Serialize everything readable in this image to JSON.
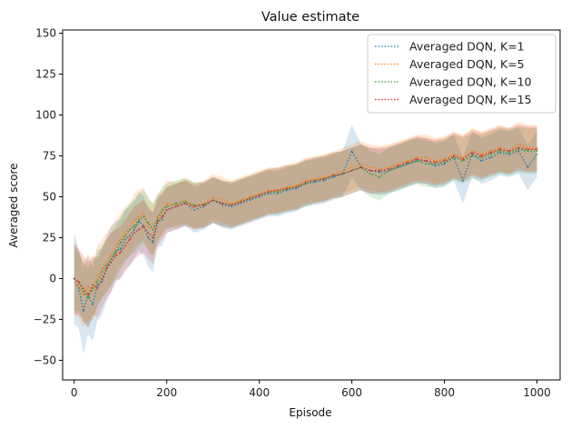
{
  "chart_data": {
    "type": "line",
    "title": "Value estimate",
    "xlabel": "Episode",
    "ylabel": "Averaged score",
    "xlim": [
      -25,
      1050
    ],
    "ylim": [
      -62,
      152
    ],
    "xticks": [
      0,
      200,
      400,
      600,
      800,
      1000
    ],
    "yticks": [
      -50,
      -25,
      0,
      25,
      50,
      75,
      100,
      125,
      150
    ],
    "legend_position": "top-right",
    "grid": false,
    "series": [
      {
        "name": "Averaged DQN, K=1",
        "color": "#1f77b4",
        "x": [
          0,
          10,
          20,
          30,
          40,
          50,
          60,
          70,
          80,
          90,
          100,
          110,
          120,
          130,
          140,
          150,
          160,
          170,
          180,
          190,
          200,
          220,
          240,
          260,
          280,
          300,
          320,
          340,
          360,
          380,
          400,
          420,
          440,
          460,
          480,
          500,
          520,
          540,
          560,
          580,
          600,
          620,
          640,
          660,
          680,
          700,
          720,
          740,
          760,
          780,
          800,
          820,
          840,
          860,
          880,
          900,
          920,
          940,
          960,
          980,
          1000
        ],
        "y": [
          0,
          -6,
          -20,
          -10,
          -16,
          -4,
          -2,
          6,
          12,
          17,
          18,
          24,
          26,
          30,
          35,
          32,
          25,
          22,
          35,
          36,
          42,
          44,
          46,
          42,
          44,
          48,
          45,
          44,
          46,
          48,
          50,
          52,
          52,
          54,
          55,
          58,
          59,
          60,
          62,
          64,
          78,
          68,
          66,
          65,
          66,
          68,
          70,
          72,
          72,
          69,
          70,
          74,
          60,
          76,
          72,
          74,
          77,
          76,
          78,
          68,
          76
        ],
        "band": [
          28,
          24,
          26,
          24,
          22,
          22,
          20,
          20,
          20,
          18,
          18,
          18,
          18,
          18,
          18,
          18,
          18,
          18,
          16,
          16,
          14,
          14,
          14,
          14,
          14,
          14,
          14,
          14,
          14,
          14,
          14,
          14,
          14,
          14,
          14,
          14,
          14,
          14,
          14,
          14,
          16,
          14,
          14,
          14,
          14,
          14,
          14,
          14,
          14,
          14,
          14,
          14,
          14,
          14,
          14,
          14,
          14,
          14,
          14,
          14,
          14
        ]
      },
      {
        "name": "Averaged DQN, K=5",
        "color": "#ff7f0e",
        "x": [
          0,
          10,
          20,
          30,
          40,
          50,
          60,
          70,
          80,
          90,
          100,
          110,
          120,
          130,
          140,
          150,
          160,
          170,
          180,
          190,
          200,
          220,
          240,
          260,
          280,
          300,
          320,
          340,
          360,
          380,
          400,
          420,
          440,
          460,
          480,
          500,
          520,
          540,
          560,
          580,
          600,
          620,
          640,
          660,
          680,
          700,
          720,
          740,
          760,
          780,
          800,
          820,
          840,
          860,
          880,
          900,
          920,
          940,
          960,
          980,
          1000
        ],
        "y": [
          0,
          -4,
          -10,
          -5,
          -8,
          2,
          6,
          10,
          14,
          20,
          24,
          28,
          30,
          36,
          38,
          40,
          32,
          30,
          38,
          40,
          46,
          45,
          48,
          44,
          46,
          50,
          48,
          46,
          48,
          50,
          52,
          54,
          54,
          56,
          57,
          60,
          61,
          62,
          64,
          66,
          68,
          70,
          68,
          67,
          68,
          70,
          72,
          74,
          74,
          72,
          73,
          76,
          74,
          78,
          76,
          78,
          80,
          78,
          82,
          80,
          80
        ],
        "band": [
          22,
          20,
          20,
          20,
          18,
          18,
          18,
          18,
          18,
          16,
          16,
          16,
          16,
          16,
          16,
          16,
          16,
          16,
          14,
          14,
          14,
          14,
          14,
          14,
          14,
          14,
          14,
          14,
          14,
          14,
          14,
          14,
          14,
          14,
          14,
          14,
          14,
          14,
          14,
          14,
          14,
          14,
          14,
          14,
          14,
          14,
          14,
          14,
          14,
          14,
          14,
          14,
          14,
          14,
          14,
          14,
          14,
          14,
          14,
          14,
          14
        ]
      },
      {
        "name": "Averaged DQN, K=10",
        "color": "#2ca02c",
        "x": [
          0,
          10,
          20,
          30,
          40,
          50,
          60,
          70,
          80,
          90,
          100,
          110,
          120,
          130,
          140,
          150,
          160,
          170,
          180,
          190,
          200,
          220,
          240,
          260,
          280,
          300,
          320,
          340,
          360,
          380,
          400,
          420,
          440,
          460,
          480,
          500,
          520,
          540,
          560,
          580,
          600,
          620,
          640,
          660,
          680,
          700,
          720,
          740,
          760,
          780,
          800,
          820,
          840,
          860,
          880,
          900,
          920,
          940,
          960,
          980,
          1000
        ],
        "y": [
          0,
          -2,
          -8,
          -12,
          -6,
          -2,
          4,
          8,
          12,
          16,
          22,
          26,
          30,
          32,
          36,
          38,
          34,
          30,
          36,
          42,
          44,
          46,
          47,
          45,
          45,
          48,
          46,
          45,
          47,
          49,
          51,
          53,
          53,
          55,
          56,
          58,
          60,
          61,
          63,
          64,
          66,
          68,
          64,
          62,
          66,
          68,
          70,
          72,
          70,
          70,
          71,
          74,
          72,
          75,
          74,
          76,
          78,
          77,
          79,
          78,
          78
        ],
        "band": [
          20,
          18,
          18,
          18,
          18,
          16,
          16,
          16,
          16,
          16,
          16,
          16,
          16,
          16,
          16,
          16,
          16,
          16,
          14,
          14,
          14,
          14,
          14,
          14,
          14,
          14,
          14,
          14,
          14,
          14,
          14,
          14,
          14,
          14,
          14,
          14,
          14,
          14,
          14,
          14,
          14,
          14,
          14,
          14,
          14,
          14,
          14,
          14,
          14,
          14,
          14,
          14,
          14,
          14,
          14,
          14,
          14,
          14,
          14,
          14,
          14
        ]
      },
      {
        "name": "Averaged DQN, K=15",
        "color": "#d62728",
        "x": [
          0,
          10,
          20,
          30,
          40,
          50,
          60,
          70,
          80,
          90,
          100,
          110,
          120,
          130,
          140,
          150,
          160,
          170,
          180,
          190,
          200,
          220,
          240,
          260,
          280,
          300,
          320,
          340,
          360,
          380,
          400,
          420,
          440,
          460,
          480,
          500,
          520,
          540,
          560,
          580,
          600,
          620,
          640,
          660,
          680,
          700,
          720,
          740,
          760,
          780,
          800,
          820,
          840,
          860,
          880,
          900,
          920,
          940,
          960,
          980,
          1000
        ],
        "y": [
          0,
          -2,
          -6,
          -10,
          -4,
          -6,
          0,
          6,
          10,
          14,
          16,
          20,
          24,
          28,
          30,
          32,
          28,
          25,
          34,
          38,
          42,
          44,
          46,
          44,
          45,
          48,
          46,
          45,
          47,
          49,
          51,
          53,
          54,
          55,
          56,
          59,
          60,
          61,
          63,
          64,
          66,
          68,
          66,
          66,
          67,
          69,
          71,
          73,
          72,
          71,
          72,
          75,
          73,
          77,
          75,
          77,
          79,
          78,
          80,
          79,
          79
        ],
        "band": [
          22,
          20,
          20,
          20,
          18,
          18,
          18,
          18,
          18,
          16,
          16,
          16,
          16,
          16,
          16,
          16,
          16,
          16,
          14,
          14,
          14,
          14,
          14,
          14,
          14,
          14,
          14,
          14,
          14,
          14,
          14,
          14,
          14,
          14,
          14,
          14,
          14,
          14,
          14,
          14,
          14,
          14,
          14,
          14,
          14,
          14,
          14,
          14,
          14,
          14,
          14,
          14,
          14,
          14,
          14,
          14,
          14,
          14,
          14,
          14,
          14
        ]
      }
    ]
  }
}
